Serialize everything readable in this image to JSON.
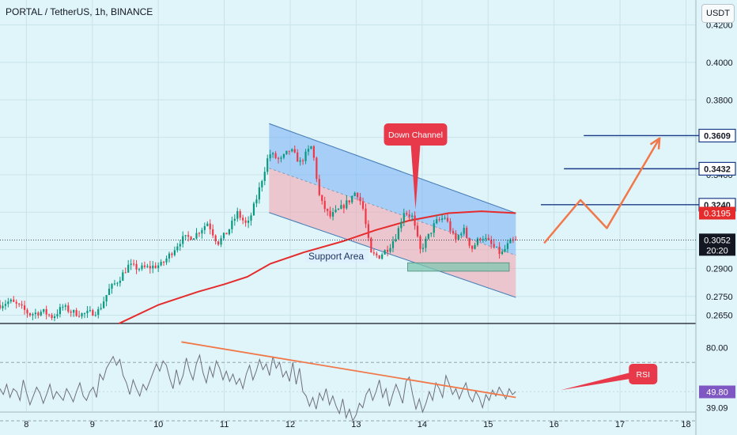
{
  "header": {
    "title": "PORTAL / TetherUS, 1h, BINANCE",
    "currency": "USDT"
  },
  "colors": {
    "up": "#089981",
    "down": "#f23645",
    "ma": "#e52b2b",
    "channel_fill_upper": "#7fb4f5",
    "channel_fill_lower": "#f1a7b3",
    "channel_line": "#4a7fb8",
    "support_fill": "#7fc7b0",
    "projection": "#f0784a",
    "level_line": "#1a3a8a",
    "rsi_line": "#6f6f78",
    "trend_line": "#f0784a",
    "callout": "#e8394a"
  },
  "chart_data": [
    {
      "type": "candlestick",
      "title": "PORTAL / TetherUS, 1h, BINANCE",
      "x_ticks": [
        "8",
        "9",
        "10",
        "11",
        "12",
        "13",
        "14",
        "15",
        "16",
        "17",
        "18"
      ],
      "y_ticks": [
        "0.4200",
        "0.4000",
        "0.3800",
        "0.3600",
        "0.3400",
        "0.3200",
        "0.3000",
        "0.2900",
        "0.2750",
        "0.2650"
      ],
      "ylim": [
        0.261,
        0.4215
      ],
      "xlim": [
        7.6,
        18.15
      ],
      "grid": true,
      "anchors": [
        {
          "x": 7.6,
          "y": 0.2705
        },
        {
          "x": 7.75,
          "y": 0.2725
        },
        {
          "x": 7.9,
          "y": 0.2695
        },
        {
          "x": 8.05,
          "y": 0.2655
        },
        {
          "x": 8.25,
          "y": 0.267
        },
        {
          "x": 8.4,
          "y": 0.264
        },
        {
          "x": 8.55,
          "y": 0.2695
        },
        {
          "x": 8.7,
          "y": 0.2665
        },
        {
          "x": 8.85,
          "y": 0.2655
        },
        {
          "x": 9.0,
          "y": 0.2665
        },
        {
          "x": 9.1,
          "y": 0.2675
        },
        {
          "x": 9.25,
          "y": 0.2785
        },
        {
          "x": 9.4,
          "y": 0.284
        },
        {
          "x": 9.55,
          "y": 0.2915
        },
        {
          "x": 9.7,
          "y": 0.29
        },
        {
          "x": 9.85,
          "y": 0.2905
        },
        {
          "x": 10.05,
          "y": 0.292
        },
        {
          "x": 10.2,
          "y": 0.2985
        },
        {
          "x": 10.35,
          "y": 0.3055
        },
        {
          "x": 10.55,
          "y": 0.3075
        },
        {
          "x": 10.75,
          "y": 0.3145
        },
        {
          "x": 10.9,
          "y": 0.3035
        },
        {
          "x": 11.05,
          "y": 0.3095
        },
        {
          "x": 11.2,
          "y": 0.3195
        },
        {
          "x": 11.35,
          "y": 0.3125
        },
        {
          "x": 11.5,
          "y": 0.3285
        },
        {
          "x": 11.68,
          "y": 0.3515
        },
        {
          "x": 11.85,
          "y": 0.3475
        },
        {
          "x": 12.0,
          "y": 0.3535
        },
        {
          "x": 12.15,
          "y": 0.3465
        },
        {
          "x": 12.33,
          "y": 0.3555
        },
        {
          "x": 12.45,
          "y": 0.3265
        },
        {
          "x": 12.6,
          "y": 0.3175
        },
        {
          "x": 12.75,
          "y": 0.3215
        },
        {
          "x": 12.9,
          "y": 0.3265
        },
        {
          "x": 13.0,
          "y": 0.3315
        },
        {
          "x": 13.1,
          "y": 0.3225
        },
        {
          "x": 13.22,
          "y": 0.2975
        },
        {
          "x": 13.35,
          "y": 0.2965
        },
        {
          "x": 13.5,
          "y": 0.3015
        },
        {
          "x": 13.62,
          "y": 0.3085
        },
        {
          "x": 13.72,
          "y": 0.3205
        },
        {
          "x": 13.85,
          "y": 0.3175
        },
        {
          "x": 13.97,
          "y": 0.2995
        },
        {
          "x": 14.1,
          "y": 0.3075
        },
        {
          "x": 14.2,
          "y": 0.3145
        },
        {
          "x": 14.35,
          "y": 0.3175
        },
        {
          "x": 14.5,
          "y": 0.3045
        },
        {
          "x": 14.62,
          "y": 0.3115
        },
        {
          "x": 14.75,
          "y": 0.3005
        },
        {
          "x": 14.9,
          "y": 0.3075
        },
        {
          "x": 15.05,
          "y": 0.3025
        },
        {
          "x": 15.2,
          "y": 0.2975
        },
        {
          "x": 15.32,
          "y": 0.3035
        },
        {
          "x": 15.42,
          "y": 0.3052
        }
      ],
      "candle_count": 190,
      "moving_average": [
        {
          "x": 9.4,
          "y": 0.2605
        },
        {
          "x": 10.0,
          "y": 0.2705
        },
        {
          "x": 10.6,
          "y": 0.2775
        },
        {
          "x": 11.0,
          "y": 0.2815
        },
        {
          "x": 11.35,
          "y": 0.2855
        },
        {
          "x": 11.7,
          "y": 0.2925
        },
        {
          "x": 12.2,
          "y": 0.2985
        },
        {
          "x": 12.8,
          "y": 0.3045
        },
        {
          "x": 13.3,
          "y": 0.3105
        },
        {
          "x": 13.8,
          "y": 0.3155
        },
        {
          "x": 14.4,
          "y": 0.3195
        },
        {
          "x": 14.9,
          "y": 0.3205
        },
        {
          "x": 15.42,
          "y": 0.3195
        }
      ],
      "down_channel": {
        "upper": [
          {
            "x": 11.68,
            "y": 0.3673
          },
          {
            "x": 15.42,
            "y": 0.3195
          }
        ],
        "lower": [
          {
            "x": 11.68,
            "y": 0.3198
          },
          {
            "x": 15.42,
            "y": 0.2745
          }
        ],
        "mid": [
          {
            "x": 11.68,
            "y": 0.3435
          },
          {
            "x": 15.42,
            "y": 0.297
          }
        ]
      },
      "support_area": {
        "x": [
          13.78,
          15.32
        ],
        "y": [
          0.293,
          0.2885
        ],
        "label": "Support Area"
      },
      "callouts": [
        {
          "label": "Down Channel",
          "x": 13.9,
          "y": 0.3615,
          "pointer_y": 0.3215
        },
        {
          "label": "RSI",
          "x": 17.35
        }
      ],
      "levels": [
        {
          "value": "0.3609",
          "x_start": 16.45
        },
        {
          "value": "0.3432",
          "x_start": 16.15
        },
        {
          "value": "0.3240",
          "x_start": 15.8
        }
      ],
      "projection": [
        {
          "x": 15.85,
          "y": 0.3035
        },
        {
          "x": 16.4,
          "y": 0.3265
        },
        {
          "x": 16.8,
          "y": 0.3115
        },
        {
          "x": 17.6,
          "y": 0.3595
        }
      ],
      "price_tags": [
        {
          "value": "0.3195",
          "y": 0.3195,
          "color": "#e52b2b"
        },
        {
          "value": "0.3052",
          "y": 0.3052,
          "color": "#131722",
          "sub": "20:20"
        }
      ]
    },
    {
      "type": "line",
      "title": "",
      "y_ticks": [
        "80.00",
        "51.70",
        "49.80",
        "39.09"
      ],
      "ylim": [
        23,
        95
      ],
      "xlim": [
        7.6,
        18.15
      ],
      "dashed_levels": [
        70,
        30
      ],
      "values": [
        52,
        48,
        55,
        46,
        52,
        50,
        44,
        58,
        49,
        41,
        47,
        53,
        49,
        42,
        48,
        55,
        45,
        50,
        47,
        44,
        52,
        48,
        43,
        50,
        56,
        47,
        44,
        50,
        53,
        46,
        62,
        58,
        66,
        70,
        74,
        68,
        72,
        61,
        56,
        48,
        58,
        52,
        47,
        55,
        51,
        57,
        63,
        69,
        64,
        71,
        68,
        59,
        52,
        65,
        55,
        61,
        73,
        64,
        58,
        69,
        75,
        63,
        56,
        67,
        60,
        71,
        66,
        58,
        64,
        57,
        62,
        55,
        59,
        52,
        62,
        68,
        58,
        64,
        72,
        65,
        69,
        61,
        74,
        66,
        70,
        60,
        64,
        57,
        70,
        55,
        66,
        50,
        47,
        40,
        46,
        38,
        49,
        44,
        52,
        41,
        47,
        40,
        35,
        45,
        32,
        38,
        30,
        34,
        42,
        39,
        48,
        52,
        44,
        50,
        58,
        46,
        52,
        40,
        48,
        55,
        49,
        42,
        57,
        60,
        48,
        38,
        45,
        36,
        42,
        50,
        44,
        56,
        52,
        46,
        61,
        55,
        48,
        52,
        45,
        51,
        56,
        47,
        43,
        50,
        46,
        39,
        48,
        44,
        51,
        47,
        53,
        49,
        45,
        52,
        48,
        50
      ],
      "trend_line": [
        {
          "x": 10.35,
          "y": 84
        },
        {
          "x": 15.42,
          "y": 46
        }
      ],
      "arrow": {
        "from": {
          "x": 16.1,
          "y": 51
        },
        "to": {
          "x": 17.3,
          "y": 62
        }
      }
    }
  ]
}
